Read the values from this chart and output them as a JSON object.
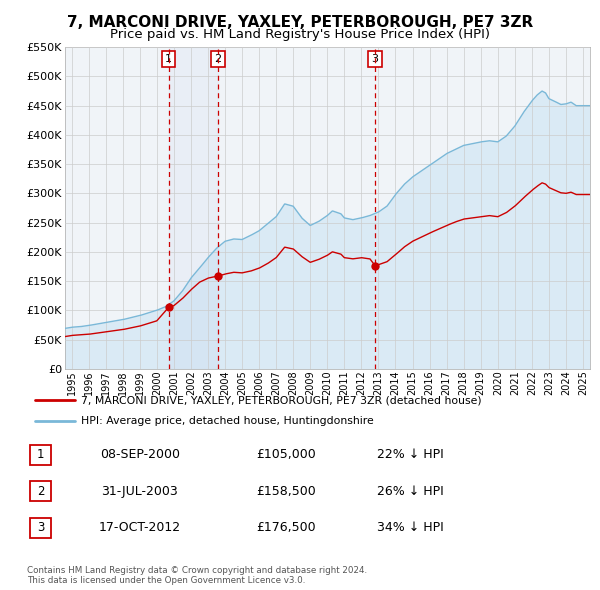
{
  "title": "7, MARCONI DRIVE, YAXLEY, PETERBOROUGH, PE7 3ZR",
  "subtitle": "Price paid vs. HM Land Registry's House Price Index (HPI)",
  "ylim": [
    0,
    550000
  ],
  "yticks": [
    0,
    50000,
    100000,
    150000,
    200000,
    250000,
    300000,
    350000,
    400000,
    450000,
    500000,
    550000
  ],
  "ytick_labels": [
    "£0",
    "£50K",
    "£100K",
    "£150K",
    "£200K",
    "£250K",
    "£300K",
    "£350K",
    "£400K",
    "£450K",
    "£500K",
    "£550K"
  ],
  "xlim_start": 1994.6,
  "xlim_end": 2025.4,
  "xtick_years": [
    1995,
    1996,
    1997,
    1998,
    1999,
    2000,
    2001,
    2002,
    2003,
    2004,
    2005,
    2006,
    2007,
    2008,
    2009,
    2010,
    2011,
    2012,
    2013,
    2014,
    2015,
    2016,
    2017,
    2018,
    2019,
    2020,
    2021,
    2022,
    2023,
    2024,
    2025
  ],
  "sale_color": "#cc0000",
  "hpi_color": "#7ab8d8",
  "hpi_fill_color": "#daeaf5",
  "background_color": "#ffffff",
  "grid_color": "#cccccc",
  "sale_points": [
    {
      "year": 2000.69,
      "value": 105000,
      "label": "1"
    },
    {
      "year": 2003.58,
      "value": 158500,
      "label": "2"
    },
    {
      "year": 2012.8,
      "value": 176500,
      "label": "3"
    }
  ],
  "vline_years": [
    2000.69,
    2003.58,
    2012.8
  ],
  "vline_labels": [
    "1",
    "2",
    "3"
  ],
  "legend_line1": "7, MARCONI DRIVE, YAXLEY, PETERBOROUGH, PE7 3ZR (detached house)",
  "legend_line2": "HPI: Average price, detached house, Huntingdonshire",
  "table_rows": [
    {
      "num": "1",
      "date": "08-SEP-2000",
      "price": "£105,000",
      "pct": "22% ↓ HPI"
    },
    {
      "num": "2",
      "date": "31-JUL-2003",
      "price": "£158,500",
      "pct": "26% ↓ HPI"
    },
    {
      "num": "3",
      "date": "17-OCT-2012",
      "price": "£176,500",
      "pct": "34% ↓ HPI"
    }
  ],
  "footer": "Contains HM Land Registry data © Crown copyright and database right 2024.\nThis data is licensed under the Open Government Licence v3.0.",
  "title_fontsize": 11,
  "subtitle_fontsize": 9.5
}
